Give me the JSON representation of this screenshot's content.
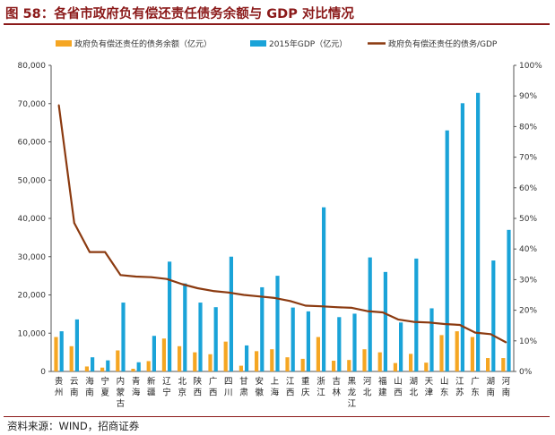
{
  "title": "图 58：各省市政府负有偿还责任债务余额与 GDP 对比情况",
  "source": "资料来源：WIND，招商证券",
  "colors": {
    "debt": "#f5a623",
    "gdp": "#1aa3d8",
    "ratio": "#8b3a10",
    "title": "#8b1a1a"
  },
  "chart_data": {
    "type": "bar",
    "title": "各省市政府负有偿还责任债务余额与 GDP 对比情况",
    "categories": [
      "贵州",
      "云南",
      "海南",
      "宁夏",
      "内蒙古",
      "青海",
      "新疆",
      "辽宁",
      "北京",
      "陕西",
      "广西",
      "四川",
      "甘肃",
      "安徽",
      "上海",
      "江西",
      "重庆",
      "浙江",
      "吉林",
      "黑龙江",
      "河北",
      "福建",
      "山西",
      "湖北",
      "天津",
      "山东",
      "江苏",
      "广东",
      "湖南",
      "河南"
    ],
    "series": [
      {
        "name": "政府负有偿还责任的债务余额（亿元）",
        "axis": "left",
        "values": [
          9000,
          6600,
          1300,
          1000,
          5500,
          700,
          2700,
          8600,
          6600,
          5000,
          4500,
          7800,
          1500,
          5300,
          5800,
          3700,
          3300,
          9000,
          2800,
          3000,
          5800,
          5000,
          2200,
          4600,
          2300,
          9500,
          10500,
          9000,
          3500,
          3500
        ]
      },
      {
        "name": "2015年GDP（亿元）",
        "axis": "left",
        "values": [
          10500,
          13600,
          3700,
          2900,
          18000,
          2400,
          9300,
          28700,
          23000,
          18000,
          16800,
          30000,
          6800,
          22000,
          25000,
          16700,
          15700,
          42900,
          14200,
          15100,
          29800,
          26000,
          12800,
          29500,
          16500,
          63000,
          70100,
          72800,
          29000,
          37000
        ]
      },
      {
        "name": "政府负有偿还责任的债务/GDP",
        "axis": "right",
        "type": "line",
        "values": [
          0.87,
          0.485,
          0.39,
          0.39,
          0.315,
          0.31,
          0.308,
          0.302,
          0.285,
          0.272,
          0.263,
          0.258,
          0.25,
          0.245,
          0.24,
          0.23,
          0.215,
          0.213,
          0.21,
          0.208,
          0.197,
          0.193,
          0.17,
          0.162,
          0.16,
          0.155,
          0.152,
          0.127,
          0.122,
          0.095
        ]
      }
    ],
    "ylim_left": [
      0,
      80000
    ],
    "yticks_left": [
      "0",
      "10,000",
      "20,000",
      "30,000",
      "40,000",
      "50,000",
      "60,000",
      "70,000",
      "80,000"
    ],
    "ylim_right": [
      0,
      1
    ],
    "yticks_right": [
      "0%",
      "10%",
      "20%",
      "30%",
      "40%",
      "50%",
      "60%",
      "70%",
      "80%",
      "90%",
      "100%"
    ],
    "legend_position": "top",
    "grid": false
  }
}
